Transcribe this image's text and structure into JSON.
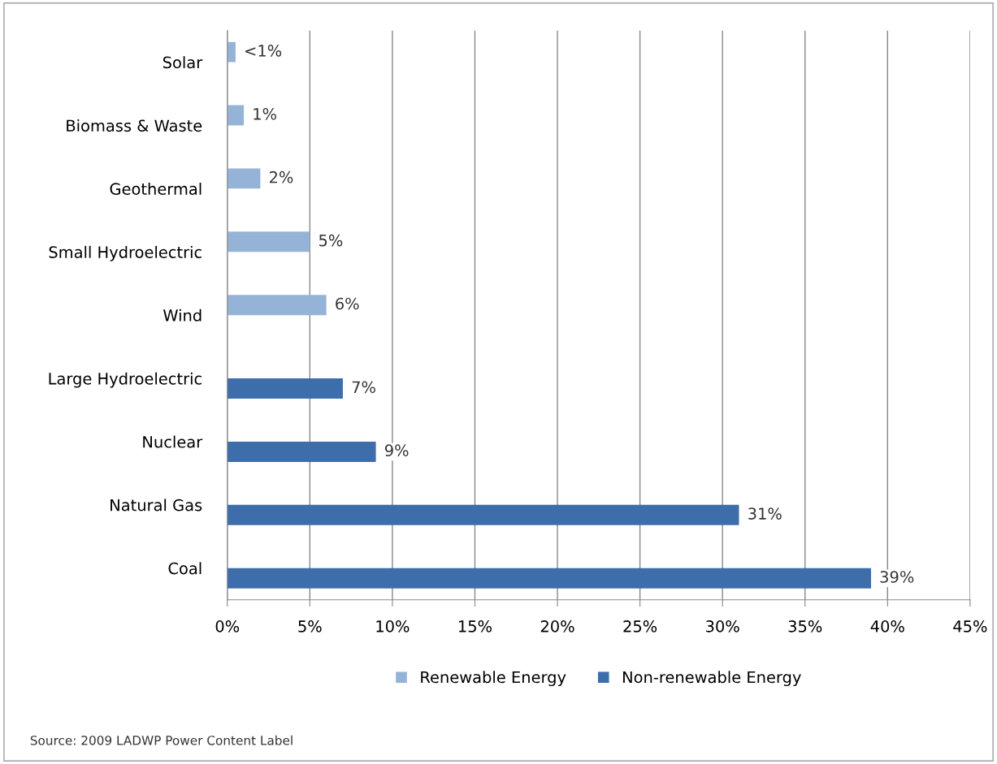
{
  "chart_data": {
    "type": "bar",
    "orientation": "horizontal",
    "categories": [
      "Solar",
      "Biomass & Waste",
      "Geothermal",
      "Small Hydroelectric",
      "Wind",
      "Large Hydroelectric",
      "Nuclear",
      "Natural Gas",
      "Coal"
    ],
    "series": [
      {
        "name": "Renewable Energy",
        "color": "#95b3d7",
        "values": [
          0.5,
          1,
          2,
          5,
          6,
          null,
          null,
          null,
          null
        ],
        "value_labels": [
          "<1%",
          "1%",
          "2%",
          "5%",
          "6%",
          null,
          null,
          null,
          null
        ]
      },
      {
        "name": "Non-renewable Energy",
        "color": "#3d6eab",
        "values": [
          null,
          null,
          null,
          null,
          null,
          7,
          9,
          31,
          39
        ],
        "value_labels": [
          null,
          null,
          null,
          null,
          null,
          "7%",
          "9%",
          "31%",
          "39%"
        ]
      }
    ],
    "xlim": [
      0,
      45
    ],
    "xticks": [
      {
        "value": 0,
        "label": "0%"
      },
      {
        "value": 5,
        "label": "5%"
      },
      {
        "value": 10,
        "label": "10%"
      },
      {
        "value": 15,
        "label": "15%"
      },
      {
        "value": 20,
        "label": "20%"
      },
      {
        "value": 25,
        "label": "25%"
      },
      {
        "value": 30,
        "label": "30%"
      },
      {
        "value": 35,
        "label": "35%"
      },
      {
        "value": 40,
        "label": "40%"
      },
      {
        "value": 45,
        "label": "45%"
      }
    ],
    "grid": "x",
    "legend": "bottom",
    "annotations": [
      "Source: 2009 LADWP Power Content Label"
    ]
  }
}
